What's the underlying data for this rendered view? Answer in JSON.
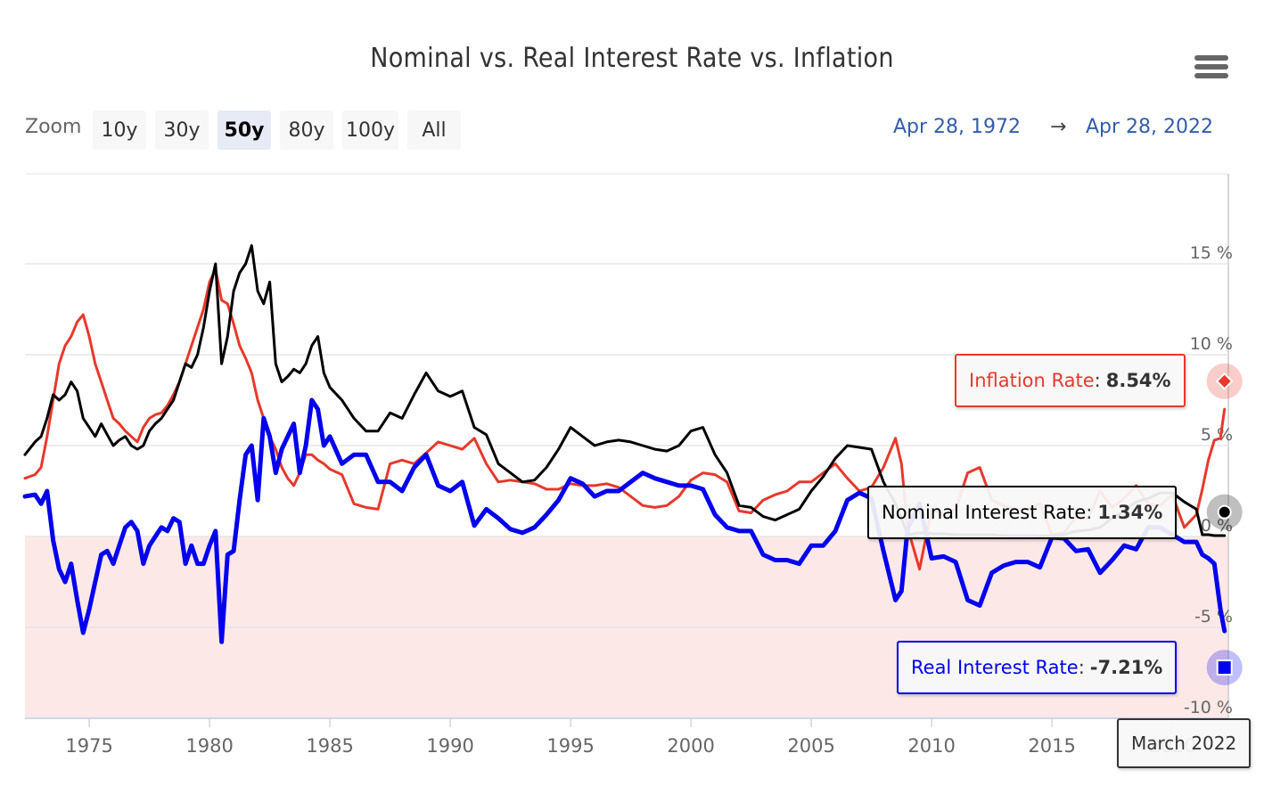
{
  "title": "Nominal vs. Real Interest Rate vs. Inflation",
  "menu_icon": "hamburger-menu-icon",
  "zoom": {
    "label": "Zoom",
    "buttons": [
      "10y",
      "30y",
      "50y",
      "80y",
      "100y",
      "All"
    ],
    "selected": "50y"
  },
  "range": {
    "from": "Apr 28, 1972",
    "arrow": "→",
    "to": "Apr 28, 2022"
  },
  "tooltips": {
    "inflation": {
      "label": "Inflation Rate",
      "value": "8.54%"
    },
    "nominal": {
      "label": "Nominal Interest Rate",
      "value": "1.34%"
    },
    "real": {
      "label": "Real Interest Rate",
      "value": "-7.21%"
    },
    "date": "March 2022"
  },
  "colors": {
    "inflation": "#e8382c",
    "nominal": "#000000",
    "real": "#0000ee",
    "negative_band": "#fde8e8"
  },
  "chart_data": {
    "type": "line",
    "title": "Nominal vs. Real Interest Rate vs. Inflation",
    "xlabel": "",
    "ylabel": "",
    "xlim": [
      1972.33,
      2022.33
    ],
    "ylim": [
      -10,
      20
    ],
    "x_ticks": [
      "1975",
      "1980",
      "1985",
      "1990",
      "1995",
      "2000",
      "2005",
      "2010",
      "2015",
      "2020"
    ],
    "y_ticks": [
      "-10 %",
      "-5 %",
      "0 %",
      "5 %",
      "10 %",
      "15 %"
    ],
    "y_tick_values": [
      -10,
      -5,
      0,
      5,
      10,
      15
    ],
    "negative_band": [
      -10,
      0
    ],
    "legend": "none",
    "grid": true,
    "x": [
      1972.33,
      1972.75,
      1973.0,
      1973.25,
      1973.5,
      1973.75,
      1974.0,
      1974.25,
      1974.5,
      1974.75,
      1975.0,
      1975.25,
      1975.5,
      1975.75,
      1976.0,
      1976.25,
      1976.5,
      1976.75,
      1977.0,
      1977.25,
      1977.5,
      1977.75,
      1978.0,
      1978.25,
      1978.5,
      1978.75,
      1979.0,
      1979.25,
      1979.5,
      1979.75,
      1980.0,
      1980.25,
      1980.5,
      1980.75,
      1981.0,
      1981.25,
      1981.5,
      1981.75,
      1982.0,
      1982.25,
      1982.5,
      1982.75,
      1983.0,
      1983.25,
      1983.5,
      1983.75,
      1984.0,
      1984.25,
      1984.5,
      1984.75,
      1985.0,
      1985.5,
      1986.0,
      1986.5,
      1987.0,
      1987.5,
      1988.0,
      1988.5,
      1989.0,
      1989.5,
      1990.0,
      1990.5,
      1991.0,
      1991.5,
      1992.0,
      1992.5,
      1993.0,
      1993.5,
      1994.0,
      1994.5,
      1995.0,
      1995.5,
      1996.0,
      1996.5,
      1997.0,
      1997.5,
      1998.0,
      1998.5,
      1999.0,
      1999.5,
      2000.0,
      2000.5,
      2001.0,
      2001.5,
      2002.0,
      2002.5,
      2003.0,
      2003.5,
      2004.0,
      2004.5,
      2005.0,
      2005.5,
      2006.0,
      2006.5,
      2007.0,
      2007.5,
      2008.0,
      2008.5,
      2008.75,
      2009.0,
      2009.5,
      2010.0,
      2010.5,
      2011.0,
      2011.5,
      2012.0,
      2012.5,
      2013.0,
      2013.5,
      2014.0,
      2014.5,
      2015.0,
      2015.5,
      2016.0,
      2016.5,
      2017.0,
      2017.5,
      2018.0,
      2018.5,
      2019.0,
      2019.5,
      2020.0,
      2020.5,
      2021.0,
      2021.25,
      2021.5,
      2021.75,
      2022.0,
      2022.17
    ],
    "series": [
      {
        "name": "Inflation Rate",
        "color": "#e8382c",
        "values": [
          3.2,
          3.4,
          3.8,
          5.5,
          7.5,
          9.5,
          10.5,
          11.0,
          11.8,
          12.2,
          11.0,
          9.5,
          8.5,
          7.5,
          6.5,
          6.2,
          5.8,
          5.5,
          5.2,
          6.0,
          6.5,
          6.7,
          6.8,
          7.2,
          7.8,
          8.5,
          9.5,
          10.5,
          11.5,
          12.5,
          14.0,
          14.7,
          13.0,
          12.8,
          11.7,
          10.5,
          9.8,
          9.0,
          7.5,
          6.5,
          5.5,
          4.8,
          3.8,
          3.2,
          2.8,
          3.5,
          4.5,
          4.5,
          4.2,
          4.0,
          3.7,
          3.4,
          1.8,
          1.6,
          1.5,
          4.0,
          4.2,
          4.0,
          4.6,
          5.2,
          5.0,
          4.8,
          5.4,
          4.0,
          3.0,
          3.1,
          3.0,
          2.9,
          2.6,
          2.6,
          2.9,
          2.8,
          2.8,
          2.9,
          2.7,
          2.2,
          1.7,
          1.6,
          1.7,
          2.2,
          3.1,
          3.5,
          3.4,
          3.0,
          1.4,
          1.3,
          2.0,
          2.3,
          2.5,
          3.0,
          3.0,
          3.5,
          4.0,
          3.2,
          2.5,
          2.7,
          3.8,
          5.4,
          4.0,
          0.5,
          -1.8,
          1.5,
          1.2,
          1.5,
          3.5,
          3.8,
          2.0,
          1.7,
          1.5,
          1.5,
          1.8,
          0.1,
          0.2,
          1.1,
          1.0,
          2.5,
          1.6,
          2.1,
          2.8,
          1.8,
          1.7,
          2.3,
          0.5,
          1.2,
          2.6,
          4.2,
          5.3,
          5.4,
          7.0,
          7.9,
          8.54
        ]
      },
      {
        "name": "Nominal Interest Rate",
        "color": "#000000",
        "values": [
          4.5,
          5.2,
          5.5,
          6.5,
          7.8,
          7.5,
          7.8,
          8.5,
          8.0,
          6.5,
          6.0,
          5.5,
          6.2,
          5.6,
          5.0,
          5.3,
          5.5,
          5.0,
          4.8,
          5.0,
          5.8,
          6.2,
          6.5,
          7.0,
          7.5,
          8.5,
          9.5,
          9.3,
          10.0,
          11.5,
          13.5,
          15.0,
          9.5,
          11.0,
          13.5,
          14.5,
          15.0,
          16.0,
          13.5,
          12.8,
          14.0,
          9.5,
          8.5,
          8.8,
          9.2,
          9.0,
          9.5,
          10.5,
          11.0,
          9.0,
          8.2,
          7.5,
          6.5,
          5.8,
          5.8,
          6.8,
          6.5,
          7.8,
          9.0,
          8.0,
          7.7,
          8.0,
          6.0,
          5.6,
          4.0,
          3.5,
          3.0,
          3.1,
          3.8,
          4.8,
          6.0,
          5.5,
          5.0,
          5.2,
          5.3,
          5.2,
          5.0,
          4.8,
          4.7,
          5.0,
          5.8,
          6.0,
          4.5,
          3.5,
          1.7,
          1.6,
          1.1,
          0.9,
          1.2,
          1.5,
          2.5,
          3.3,
          4.3,
          5.0,
          4.9,
          4.8,
          3.0,
          1.8,
          1.0,
          0.1,
          0.2,
          0.15,
          0.15,
          0.1,
          0.1,
          0.1,
          0.1,
          0.05,
          0.05,
          0.05,
          0.03,
          0.05,
          0.1,
          0.3,
          0.35,
          0.5,
          1.0,
          1.4,
          1.9,
          2.1,
          2.4,
          2.4,
          1.9,
          1.5,
          0.1,
          0.1,
          0.05,
          0.05,
          0.05,
          0.1,
          1.34
        ]
      },
      {
        "name": "Real Interest Rate",
        "color": "#0000ee",
        "values": [
          2.2,
          2.3,
          1.8,
          2.5,
          -0.2,
          -1.8,
          -2.5,
          -1.5,
          -3.5,
          -5.3,
          -4.0,
          -2.5,
          -1.0,
          -0.8,
          -1.5,
          -0.5,
          0.5,
          0.8,
          0.3,
          -1.5,
          -0.5,
          0.0,
          0.5,
          0.3,
          1.0,
          0.8,
          -1.5,
          -0.5,
          -1.5,
          -1.5,
          -0.5,
          0.3,
          -5.8,
          -1.0,
          -0.8,
          2.0,
          4.5,
          5.0,
          2.0,
          6.5,
          5.5,
          3.5,
          4.8,
          5.5,
          6.2,
          3.5,
          5.0,
          7.5,
          7.0,
          5.0,
          5.5,
          4.0,
          4.5,
          4.5,
          3.0,
          3.0,
          2.5,
          3.8,
          4.5,
          2.8,
          2.5,
          3.0,
          0.6,
          1.5,
          1.0,
          0.4,
          0.2,
          0.5,
          1.2,
          2.0,
          3.2,
          2.9,
          2.2,
          2.5,
          2.5,
          3.0,
          3.5,
          3.2,
          3.0,
          2.8,
          2.8,
          2.6,
          1.2,
          0.5,
          0.3,
          0.3,
          -1.0,
          -1.3,
          -1.3,
          -1.5,
          -0.5,
          -0.5,
          0.3,
          2.0,
          2.4,
          2.1,
          -0.8,
          -3.5,
          -3.0,
          0.4,
          1.8,
          -1.2,
          -1.1,
          -1.4,
          -3.5,
          -3.8,
          -2.0,
          -1.6,
          -1.4,
          -1.4,
          -1.7,
          -0.05,
          -0.1,
          -0.8,
          -0.7,
          -2.0,
          -1.3,
          -0.5,
          -0.7,
          0.5,
          0.5,
          0.1,
          -0.3,
          -0.3,
          -1.0,
          -1.2,
          -1.5,
          -4.0,
          -5.2,
          -5.4,
          -6.9,
          -7.21
        ]
      }
    ],
    "tooltip_point": {
      "x": "March 2022",
      "Inflation Rate": 8.54,
      "Nominal Interest Rate": 1.34,
      "Real Interest Rate": -7.21
    }
  }
}
